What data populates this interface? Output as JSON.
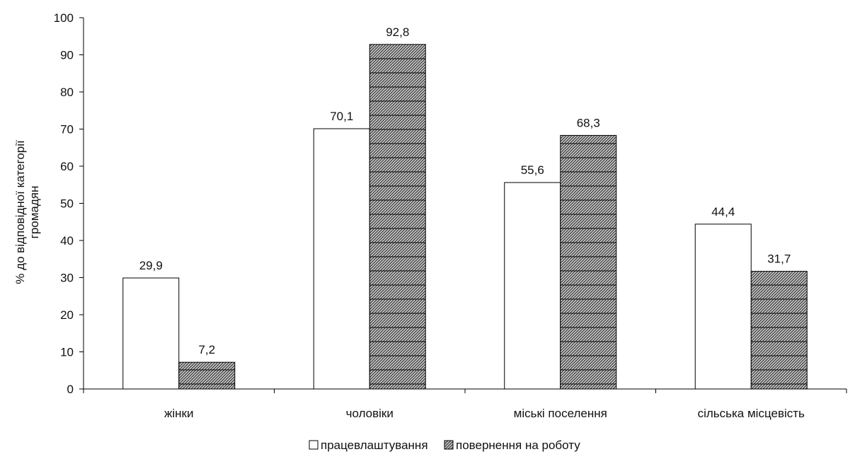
{
  "chart_data": {
    "type": "bar",
    "categories": [
      "жінки",
      "чоловіки",
      "міські поселення",
      "сільська місцевість"
    ],
    "series": [
      {
        "name": "працевлаштування",
        "values": [
          29.9,
          70.1,
          55.6,
          44.4
        ],
        "labels": [
          "29,9",
          "70,1",
          "55,6",
          "44,4"
        ],
        "fill": "#ffffff"
      },
      {
        "name": "повернення на роботу",
        "values": [
          7.2,
          92.8,
          68.3,
          31.7
        ],
        "labels": [
          "7,2",
          "92,8",
          "68,3",
          "31,7"
        ],
        "fill": "hatched"
      }
    ],
    "ylabel": "% до відповідної категорії громадян",
    "ylabel_lines": [
      "% до відповідної категорії",
      "громадян"
    ],
    "ylim": [
      0,
      100
    ],
    "yticks": [
      0,
      10,
      20,
      30,
      40,
      50,
      60,
      70,
      80,
      90,
      100
    ],
    "legend_position": "bottom-center",
    "grid": false
  }
}
